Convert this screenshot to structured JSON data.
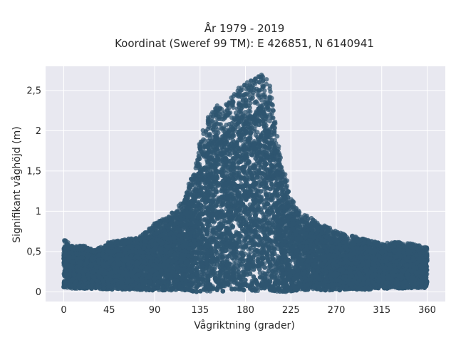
{
  "chart_data": {
    "type": "scatter",
    "title": "År 1979 - 2019",
    "subtitle": "Koordinat (Sweref 99 TM): E 426851, N 6140941",
    "xlabel": "Vågriktning (grader)",
    "ylabel": "Signifikant våghöjd (m)",
    "xlim": [
      -18,
      378
    ],
    "ylim": [
      -0.12,
      2.8
    ],
    "x_ticks": [
      0,
      45,
      90,
      135,
      180,
      225,
      270,
      315,
      360
    ],
    "x_tick_labels": [
      "0",
      "45",
      "90",
      "135",
      "180",
      "225",
      "270",
      "315",
      "360"
    ],
    "y_ticks": [
      0,
      0.5,
      1,
      1.5,
      2,
      2.5
    ],
    "y_tick_labels": [
      "0",
      "0,5",
      "1",
      "1,5",
      "2",
      "2,5"
    ],
    "grid": true,
    "legend": "none",
    "series": [
      {
        "x": [
          0,
          10,
          20,
          30,
          45,
          60,
          75,
          90,
          105,
          120,
          125,
          130,
          135,
          140,
          150,
          160,
          170,
          180,
          190,
          195,
          200,
          205,
          210,
          215,
          220,
          225,
          230,
          240,
          255,
          270,
          285,
          300,
          315,
          330,
          345,
          360
        ],
        "y_max": [
          0.66,
          0.56,
          0.58,
          0.52,
          0.62,
          0.65,
          0.68,
          0.85,
          0.95,
          1.15,
          1.4,
          1.5,
          1.9,
          2.1,
          2.33,
          2.32,
          2.5,
          2.6,
          2.65,
          2.7,
          2.7,
          2.55,
          2.1,
          1.65,
          1.45,
          1.2,
          1.05,
          0.95,
          0.85,
          0.75,
          0.7,
          0.65,
          0.6,
          0.62,
          0.6,
          0.55
        ],
        "y_min": [
          0.05,
          0.04,
          0.04,
          0.04,
          0.03,
          0.03,
          0.02,
          0.02,
          0.02,
          0.02,
          0.02,
          0.0,
          0.0,
          0.0,
          0.0,
          0.0,
          0.0,
          0.0,
          0.0,
          0.0,
          0.0,
          0.0,
          0.0,
          0.0,
          0.0,
          0.0,
          0.02,
          0.02,
          0.02,
          0.02,
          0.03,
          0.03,
          0.04,
          0.04,
          0.05,
          0.05
        ],
        "approx_points": 40000
      }
    ],
    "colors": {
      "marker": "#2f5570",
      "plot_background": "#e8e8f0",
      "grid": "#ffffff"
    }
  }
}
